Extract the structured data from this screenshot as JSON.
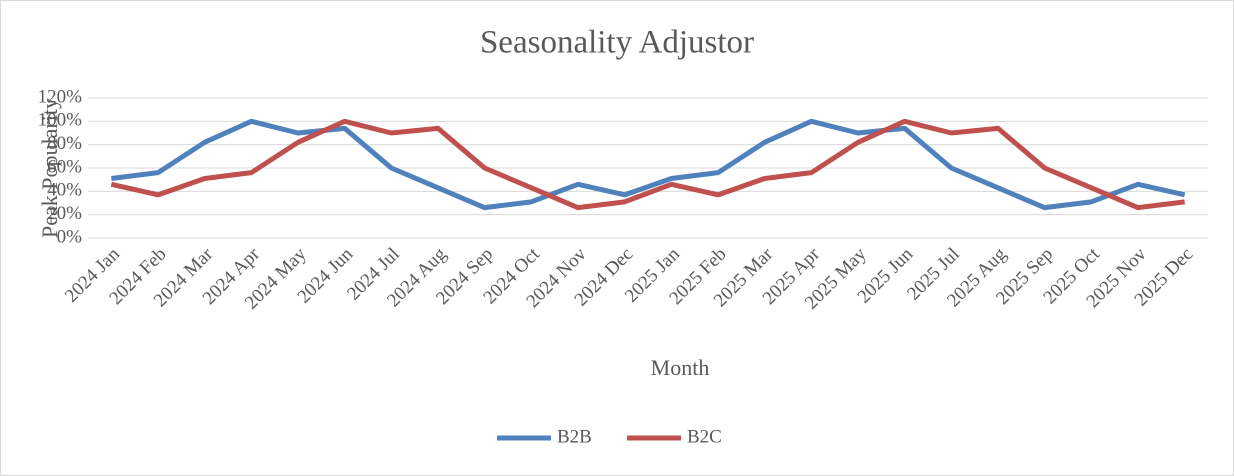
{
  "chart_data": {
    "type": "line",
    "title": "Seasonality Adjustor",
    "x_label": "Month",
    "y_label": "Peak Popularity",
    "categories": [
      "2024 Jan",
      "2024 Feb",
      "2024 Mar",
      "2024 Apr",
      "2024 May",
      "2024 Jun",
      "2024 Jul",
      "2024 Aug",
      "2024 Sep",
      "2024 Oct",
      "2024 Nov",
      "2024 Dec",
      "2025 Jan",
      "2025 Feb",
      "2025 Mar",
      "2025 Apr",
      "2025 May",
      "2025 Jun",
      "2025 Jul",
      "2025 Aug",
      "2025 Sep",
      "2025 Oct",
      "2025 Nov",
      "2025 Dec"
    ],
    "series": [
      {
        "name": "B2B",
        "color": "#4f81bd",
        "values": [
          51,
          56,
          82,
          100,
          90,
          94,
          60,
          43,
          26,
          31,
          46,
          37,
          51,
          56,
          82,
          100,
          90,
          94,
          60,
          43,
          26,
          31,
          46,
          37
        ]
      },
      {
        "name": "B2C",
        "color": "#c0504d",
        "values": [
          46,
          37,
          51,
          56,
          82,
          100,
          90,
          94,
          60,
          43,
          26,
          31,
          46,
          37,
          51,
          56,
          82,
          100,
          90,
          94,
          60,
          43,
          26,
          31
        ]
      }
    ],
    "ylim": [
      0,
      120
    ],
    "yticks": [
      {
        "value": 0,
        "label": "0%"
      },
      {
        "value": 20,
        "label": "20%"
      },
      {
        "value": 40,
        "label": "40%"
      },
      {
        "value": 60,
        "label": "60%"
      },
      {
        "value": 80,
        "label": "80%"
      },
      {
        "value": 100,
        "label": "100%"
      },
      {
        "value": 120,
        "label": "120%"
      }
    ],
    "grid": true,
    "legend": "bottom"
  }
}
